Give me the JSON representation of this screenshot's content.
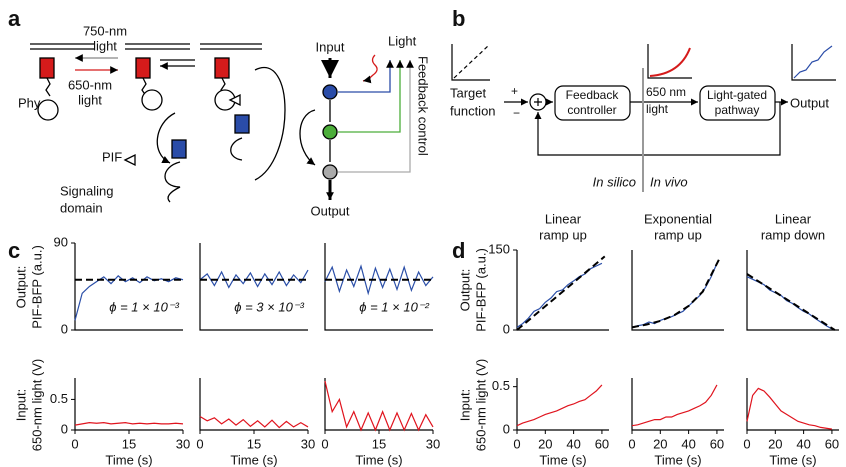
{
  "panel_labels": [
    "a",
    "b",
    "c",
    "d"
  ],
  "panel_a": {
    "light_750": [
      "750-nm",
      "light"
    ],
    "light_650": [
      "650-nm",
      "light"
    ],
    "phy": "Phy",
    "pif": "PIF",
    "signaling": [
      "Signaling",
      "domain"
    ],
    "input": "Input",
    "light": "Light",
    "feedback": "Feedback control",
    "output": "Output"
  },
  "panel_b": {
    "target": [
      "Target",
      "function"
    ],
    "plus": "+",
    "minus": "−",
    "controller": [
      "Feedback",
      "controller"
    ],
    "light": [
      "650 nm",
      "light"
    ],
    "pathway": [
      "Light-gated",
      "pathway"
    ],
    "output": "Output",
    "in_silico": "In silico",
    "in_vivo": "In vivo"
  },
  "panel_c": {
    "ylabel_top": [
      "Output:",
      "PIF-BFP (a.u.)"
    ],
    "ylabel_bottom": [
      "Input:",
      "650-nm light (V)"
    ]
  },
  "panel_d": {
    "ylabel_top": [
      "Output:",
      "PIF-BFP (a.u.)"
    ],
    "ylabel_bottom": [
      "Input:",
      "650-nm light (V)"
    ]
  },
  "chart_data": [
    {
      "type": "line",
      "ylim": [
        0,
        90
      ],
      "yticks": [
        0,
        90
      ],
      "xlim": [
        0,
        30
      ],
      "annotation": "ϕ = 1 × 10⁻³",
      "series": [
        {
          "color": "#2b4fa8",
          "x": [
            0,
            2,
            4,
            6,
            8,
            10,
            12,
            14,
            16,
            18,
            20,
            22,
            24,
            26,
            28,
            30
          ],
          "values": [
            10,
            38,
            45,
            50,
            55,
            48,
            56,
            50,
            54,
            49,
            55,
            51,
            53,
            50,
            54,
            52
          ]
        },
        {
          "color": "#000000",
          "dashed": true,
          "x": [
            0,
            30
          ],
          "values": [
            52,
            52
          ]
        }
      ]
    },
    {
      "type": "line",
      "ylim": [
        0,
        90
      ],
      "xlim": [
        0,
        30
      ],
      "annotation": "ϕ = 3 × 10⁻³",
      "series": [
        {
          "color": "#2b4fa8",
          "x": [
            0,
            2,
            4,
            6,
            8,
            10,
            12,
            14,
            16,
            18,
            20,
            22,
            24,
            26,
            28,
            30
          ],
          "values": [
            52,
            58,
            46,
            60,
            44,
            57,
            48,
            59,
            45,
            58,
            47,
            60,
            46,
            57,
            49,
            62
          ]
        },
        {
          "color": "#000000",
          "dashed": true,
          "x": [
            0,
            30
          ],
          "values": [
            52,
            52
          ]
        }
      ]
    },
    {
      "type": "line",
      "ylim": [
        0,
        90
      ],
      "xlim": [
        0,
        30
      ],
      "annotation": "ϕ = 1 × 10⁻²",
      "series": [
        {
          "color": "#2b4fa8",
          "x": [
            0,
            2,
            4,
            6,
            8,
            10,
            12,
            14,
            16,
            18,
            20,
            22,
            24,
            26,
            28,
            30
          ],
          "values": [
            50,
            65,
            40,
            62,
            45,
            66,
            38,
            64,
            44,
            63,
            42,
            65,
            41,
            60,
            46,
            55
          ]
        },
        {
          "color": "#000000",
          "dashed": true,
          "x": [
            0,
            30
          ],
          "values": [
            52,
            52
          ]
        }
      ]
    },
    {
      "type": "line",
      "ylim": [
        0,
        0.85
      ],
      "yticks": [
        0,
        0.5
      ],
      "xlim": [
        0,
        30
      ],
      "xticks": [
        0,
        15,
        30
      ],
      "xlabel": "Time (s)",
      "series": [
        {
          "color": "#e0141e",
          "x": [
            0,
            2,
            4,
            6,
            8,
            10,
            12,
            14,
            16,
            18,
            20,
            22,
            24,
            26,
            28,
            30
          ],
          "values": [
            0.08,
            0.1,
            0.12,
            0.11,
            0.12,
            0.1,
            0.11,
            0.12,
            0.1,
            0.11,
            0.1,
            0.11,
            0.1,
            0.1,
            0.11,
            0.1
          ]
        }
      ]
    },
    {
      "type": "line",
      "ylim": [
        0,
        0.85
      ],
      "xlim": [
        0,
        30
      ],
      "xticks": [
        0,
        15,
        30
      ],
      "xlabel": "Time (s)",
      "series": [
        {
          "color": "#e0141e",
          "x": [
            0,
            2,
            4,
            6,
            8,
            10,
            12,
            14,
            16,
            18,
            20,
            22,
            24,
            26,
            28,
            30
          ],
          "values": [
            0.22,
            0.15,
            0.2,
            0.1,
            0.18,
            0.08,
            0.17,
            0.06,
            0.15,
            0.05,
            0.16,
            0.04,
            0.14,
            0.05,
            0.12,
            0.05
          ]
        }
      ]
    },
    {
      "type": "line",
      "ylim": [
        0,
        0.85
      ],
      "xlim": [
        0,
        30
      ],
      "xticks": [
        0,
        15,
        30
      ],
      "xlabel": "Time (s)",
      "series": [
        {
          "color": "#e0141e",
          "x": [
            0,
            2,
            4,
            6,
            8,
            10,
            12,
            14,
            16,
            18,
            20,
            22,
            24,
            26,
            28,
            30
          ],
          "values": [
            0.8,
            0.3,
            0.5,
            0.05,
            0.3,
            0,
            0.28,
            0,
            0.3,
            0,
            0.28,
            0,
            0.27,
            0,
            0.25,
            0.05
          ]
        }
      ]
    },
    {
      "type": "line",
      "title": [
        "Linear",
        "ramp up"
      ],
      "ylim": [
        0,
        150
      ],
      "yticks": [
        0,
        150
      ],
      "xlim": [
        0,
        65
      ],
      "series": [
        {
          "color": "#2b4fa8",
          "x": [
            0,
            4,
            8,
            12,
            16,
            20,
            24,
            28,
            32,
            36,
            40,
            44,
            48,
            52,
            56,
            60
          ],
          "values": [
            5,
            12,
            22,
            35,
            40,
            52,
            60,
            72,
            75,
            85,
            92,
            100,
            105,
            115,
            120,
            125
          ]
        },
        {
          "color": "#000000",
          "dashed": true,
          "x": [
            0,
            62
          ],
          "values": [
            0,
            138
          ]
        }
      ]
    },
    {
      "type": "line",
      "title": [
        "Exponential",
        "ramp up"
      ],
      "ylim": [
        0,
        150
      ],
      "xlim": [
        0,
        65
      ],
      "series": [
        {
          "color": "#2b4fa8",
          "x": [
            0,
            4,
            8,
            12,
            16,
            20,
            24,
            28,
            32,
            36,
            40,
            44,
            48,
            52,
            56,
            60
          ],
          "values": [
            5,
            8,
            10,
            15,
            12,
            18,
            22,
            25,
            30,
            35,
            45,
            55,
            65,
            80,
            100,
            125
          ]
        },
        {
          "color": "#000000",
          "dashed": true,
          "x": [
            0,
            10,
            20,
            30,
            40,
            50,
            62
          ],
          "values": [
            5,
            10,
            17,
            28,
            45,
            72,
            135
          ]
        }
      ]
    },
    {
      "type": "line",
      "title": [
        "Linear",
        "ramp down"
      ],
      "ylim": [
        0,
        150
      ],
      "xlim": [
        0,
        65
      ],
      "series": [
        {
          "color": "#2b4fa8",
          "x": [
            0,
            4,
            8,
            12,
            16,
            20,
            24,
            28,
            32,
            36,
            40,
            44,
            48,
            52,
            56,
            60
          ],
          "values": [
            100,
            95,
            90,
            85,
            75,
            70,
            65,
            55,
            50,
            42,
            35,
            30,
            22,
            15,
            8,
            2
          ]
        },
        {
          "color": "#000000",
          "dashed": true,
          "x": [
            0,
            62
          ],
          "values": [
            105,
            0
          ]
        }
      ]
    },
    {
      "type": "line",
      "ylim": [
        0,
        0.6
      ],
      "yticks": [
        0,
        0.5
      ],
      "xlim": [
        0,
        65
      ],
      "xticks": [
        0,
        20,
        40,
        60
      ],
      "xlabel": "Time (s)",
      "series": [
        {
          "color": "#e0141e",
          "x": [
            0,
            4,
            8,
            12,
            16,
            20,
            24,
            28,
            32,
            36,
            40,
            44,
            48,
            52,
            56,
            60
          ],
          "values": [
            0.05,
            0.08,
            0.1,
            0.12,
            0.15,
            0.18,
            0.2,
            0.22,
            0.25,
            0.28,
            0.3,
            0.33,
            0.35,
            0.4,
            0.45,
            0.52
          ]
        }
      ]
    },
    {
      "type": "line",
      "ylim": [
        0,
        0.6
      ],
      "xlim": [
        0,
        65
      ],
      "xticks": [
        0,
        20,
        40,
        60
      ],
      "xlabel": "Time (s)",
      "series": [
        {
          "color": "#e0141e",
          "x": [
            0,
            4,
            8,
            12,
            16,
            20,
            24,
            28,
            32,
            36,
            40,
            44,
            48,
            52,
            56,
            60
          ],
          "values": [
            0.05,
            0.06,
            0.08,
            0.1,
            0.12,
            0.12,
            0.15,
            0.15,
            0.18,
            0.2,
            0.22,
            0.25,
            0.28,
            0.32,
            0.4,
            0.52
          ]
        }
      ]
    },
    {
      "type": "line",
      "ylim": [
        0,
        0.6
      ],
      "xlim": [
        0,
        65
      ],
      "xticks": [
        0,
        20,
        40,
        60
      ],
      "xlabel": "Time (s)",
      "series": [
        {
          "color": "#e0141e",
          "x": [
            0,
            4,
            8,
            12,
            16,
            20,
            24,
            28,
            32,
            36,
            40,
            44,
            48,
            52,
            56,
            60
          ],
          "values": [
            0.1,
            0.4,
            0.48,
            0.45,
            0.38,
            0.3,
            0.22,
            0.18,
            0.14,
            0.1,
            0.08,
            0.06,
            0.05,
            0.03,
            0.02,
            0.01
          ]
        }
      ]
    }
  ]
}
